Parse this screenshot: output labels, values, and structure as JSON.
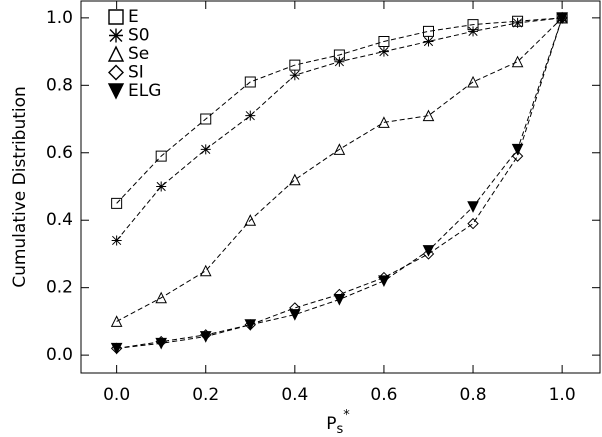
{
  "chart_data": {
    "type": "line",
    "xlabel": {
      "base": "P",
      "sub": "s",
      "sup": "*"
    },
    "ylabel": "Cumulative Distribution",
    "x": [
      0.0,
      0.1,
      0.2,
      0.3,
      0.4,
      0.5,
      0.6,
      0.7,
      0.8,
      0.9,
      1.0
    ],
    "series": [
      {
        "name": "E",
        "color": "#000000",
        "marker": "square",
        "values": [
          0.45,
          0.59,
          0.7,
          0.81,
          0.86,
          0.89,
          0.93,
          0.96,
          0.98,
          0.99,
          1.0
        ]
      },
      {
        "name": "S0",
        "color": "#000000",
        "marker": "asterisk",
        "values": [
          0.34,
          0.5,
          0.61,
          0.71,
          0.83,
          0.87,
          0.9,
          0.93,
          0.96,
          0.985,
          1.0
        ]
      },
      {
        "name": "Se",
        "color": "#000000",
        "marker": "triangle",
        "values": [
          0.1,
          0.17,
          0.25,
          0.4,
          0.52,
          0.61,
          0.69,
          0.71,
          0.81,
          0.87,
          1.0
        ]
      },
      {
        "name": "SI",
        "color": "#000000",
        "marker": "diamond",
        "values": [
          0.02,
          0.04,
          0.06,
          0.09,
          0.14,
          0.18,
          0.23,
          0.3,
          0.39,
          0.59,
          1.0
        ]
      },
      {
        "name": "ELG",
        "color": "#000000",
        "marker": "filled-down-triangle",
        "values": [
          0.02,
          0.035,
          0.055,
          0.09,
          0.12,
          0.165,
          0.22,
          0.31,
          0.44,
          0.61,
          1.0
        ]
      }
    ],
    "xlim": [
      -0.08,
      1.085
    ],
    "ylim": [
      -0.053,
      1.05
    ],
    "xticks": [
      {
        "value": 0,
        "label": "0.0"
      },
      {
        "value": 0.2,
        "label": "0.2"
      },
      {
        "value": 0.4,
        "label": "0.4"
      },
      {
        "value": 0.6,
        "label": "0.6"
      },
      {
        "value": 0.8,
        "label": "0.8"
      },
      {
        "value": 1,
        "label": "1.0"
      }
    ],
    "yticks": [
      {
        "value": 0,
        "label": "0.0"
      },
      {
        "value": 0.2,
        "label": "0.2"
      },
      {
        "value": 0.4,
        "label": "0.4"
      },
      {
        "value": 0.6,
        "label": "0.6"
      },
      {
        "value": 0.8,
        "label": "0.8"
      },
      {
        "value": 1,
        "label": "1.0"
      }
    ],
    "legend": "upper-left",
    "line_style": "dashed"
  }
}
